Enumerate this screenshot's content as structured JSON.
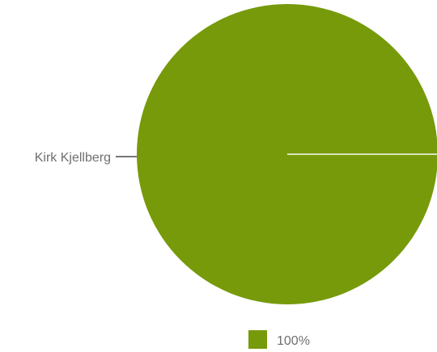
{
  "chart_data": {
    "type": "pie",
    "categories": [
      "Kirk Kjellberg"
    ],
    "values": [
      100
    ],
    "slice_color": "#779a0b",
    "divider_color": "#d9e4b8",
    "leader_color": "#4a4a4a",
    "text_color": "#6f6f6f",
    "legend": {
      "entries": [
        {
          "label": "100%",
          "color": "#779a0b"
        }
      ],
      "placement": "bottom-center"
    }
  }
}
